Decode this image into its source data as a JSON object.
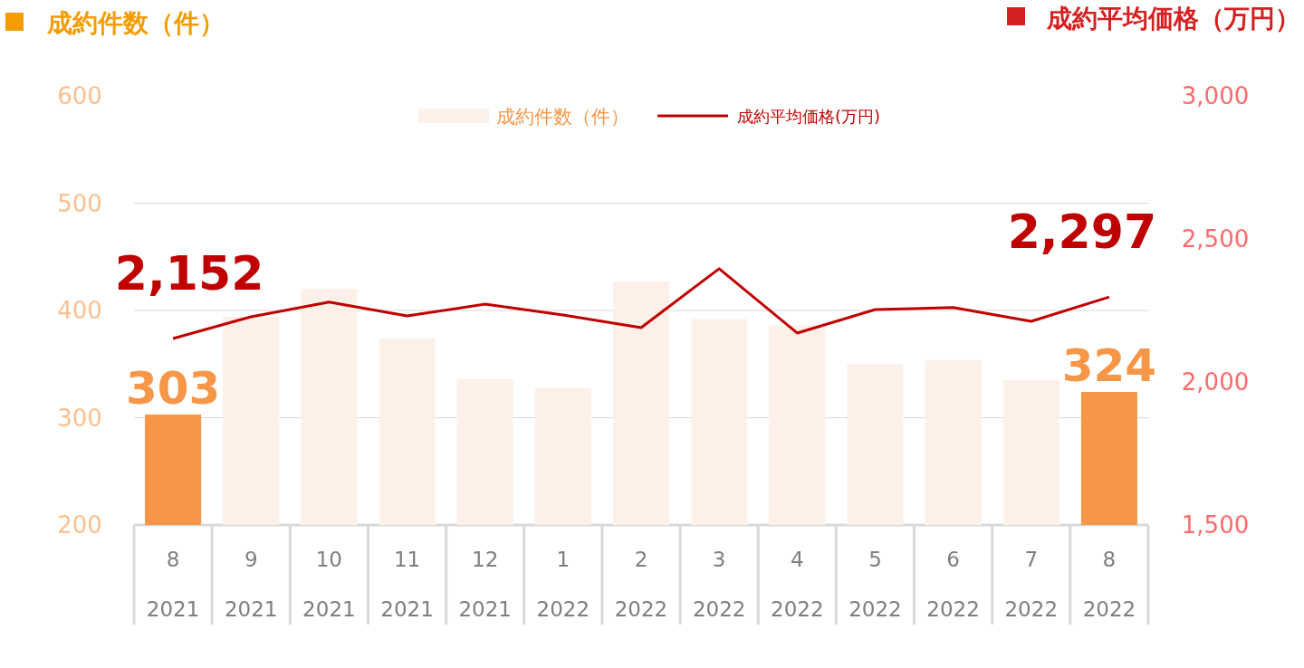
{
  "chart_data": {
    "type": "bar",
    "ylabel": "成約件数（件）",
    "y2label": "成約平均価格（万円）",
    "categories": [
      "8\n2021",
      "9\n2021",
      "10\n2021",
      "11\n2021",
      "12\n2021",
      "1\n2022",
      "2\n2022",
      "3\n2022",
      "4\n2022",
      "5\n2022",
      "6\n2022",
      "7\n2022",
      "8\n2022"
    ],
    "ylim": [
      200,
      600
    ],
    "yticks": [
      200,
      300,
      400,
      500,
      600
    ],
    "y2lim": [
      1500,
      3000
    ],
    "y2ticks": [
      {
        "value": 1500,
        "label": "1,500"
      },
      {
        "value": 2000,
        "label": "2,000"
      },
      {
        "value": 2500,
        "label": "2,500"
      },
      {
        "value": 3000,
        "label": "3,000"
      }
    ],
    "grid": "y",
    "legend": "top",
    "series": [
      {
        "name": "成約件数（件）",
        "color": "#fcf0e8",
        "colors": [
          "#f79646",
          "#fcf0e8",
          "#fcf0e8",
          "#fcf0e8",
          "#fcf0e8",
          "#fcf0e8",
          "#fcf0e8",
          "#fcf0e8",
          "#fcf0e8",
          "#fcf0e8",
          "#fcf0e8",
          "#fcf0e8",
          "#f79646"
        ],
        "values": [
          303,
          394,
          420,
          374,
          336,
          328,
          427,
          392,
          386,
          350,
          354,
          335,
          324
        ],
        "value_labels": [
          "303",
          null,
          null,
          null,
          null,
          null,
          null,
          null,
          null,
          null,
          null,
          null,
          "324"
        ]
      },
      {
        "name": "成約平均価格(万円)",
        "type": "line",
        "axis": "y2",
        "color": "#c00000",
        "values": [
          2152,
          2228,
          2279,
          2231,
          2272,
          2234,
          2190,
          2396,
          2171,
          2253,
          2260,
          2212,
          2297
        ],
        "value_labels": [
          "2,152",
          null,
          null,
          null,
          null,
          null,
          null,
          null,
          null,
          null,
          null,
          null,
          "2,297"
        ]
      }
    ]
  }
}
